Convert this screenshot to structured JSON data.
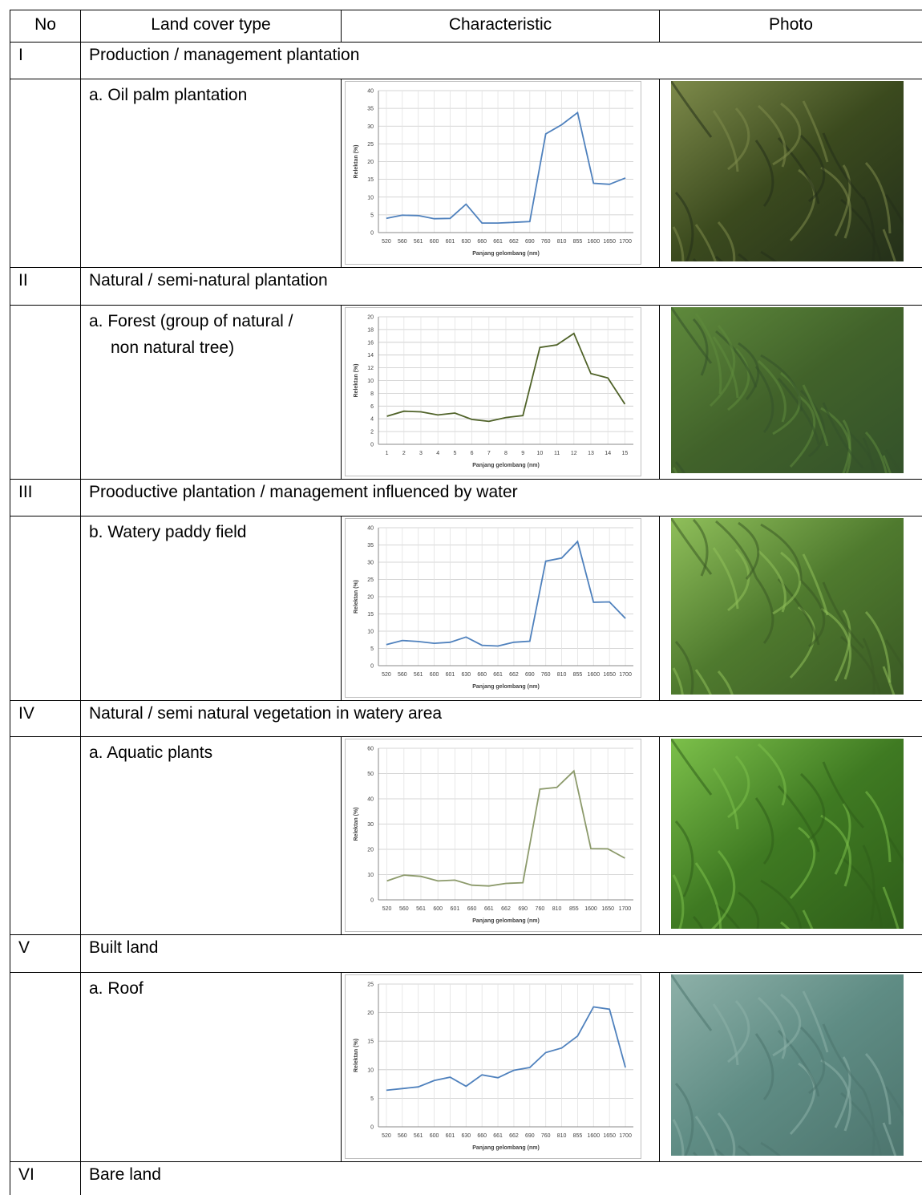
{
  "table": {
    "header": [
      "No",
      "Land cover type",
      "Characteristic",
      "Photo"
    ],
    "rows": [
      {
        "no": "I",
        "title": "Production / management plantation"
      },
      {
        "land_cover": "a. Oil palm plantation",
        "chart": {
          "type": "line",
          "ylabel": "Relektan (%)",
          "xlabel": "Panjang gelombang (nm)",
          "color": "#4f81bd",
          "categories": [
            "520",
            "560",
            "561",
            "600",
            "601",
            "630",
            "660",
            "661",
            "662",
            "690",
            "760",
            "810",
            "855",
            "1600",
            "1650",
            "1700"
          ],
          "values": [
            4,
            4.9,
            4.8,
            3.9,
            4,
            8,
            2.7,
            2.7,
            2.9,
            3.1,
            27.8,
            30.4,
            33.8,
            13.9,
            13.6,
            15.4
          ],
          "ylim": [
            0,
            40
          ],
          "yticks": [
            0,
            5,
            10,
            15,
            20,
            25,
            30,
            35,
            40
          ],
          "grid": true
        }
      },
      {
        "no": "II",
        "title": "Natural / semi-natural  plantation"
      },
      {
        "land_cover": "a. Forest (group of natural / non natural tree)",
        "chart": {
          "type": "line",
          "ylabel": "Relektan (%)",
          "xlabel": "Panjang gelombang (nm)",
          "color": "#4f6228",
          "categories": [
            "1",
            "2",
            "3",
            "4",
            "5",
            "6",
            "7",
            "8",
            "9",
            "10",
            "11",
            "12",
            "13",
            "14",
            "15"
          ],
          "values": [
            4.4,
            5.2,
            5.1,
            4.6,
            4.9,
            3.9,
            3.6,
            4.2,
            4.5,
            15.2,
            15.6,
            17.4,
            11.1,
            10.4,
            6.3
          ],
          "ylim": [
            0,
            20
          ],
          "yticks": [
            0,
            2,
            4,
            6,
            8,
            10,
            12,
            14,
            16,
            18,
            20
          ],
          "grid": true
        }
      },
      {
        "no": "III",
        "title": "Prooductive plantation / management influenced by water"
      },
      {
        "land_cover": "b. Watery paddy field",
        "chart": {
          "type": "line",
          "ylabel": "Relektan (%)",
          "xlabel": "Panjang gelombang (nm)",
          "color": "#4f81bd",
          "categories": [
            "520",
            "560",
            "561",
            "600",
            "601",
            "630",
            "660",
            "661",
            "662",
            "690",
            "760",
            "810",
            "855",
            "1600",
            "1650",
            "1700"
          ],
          "values": [
            6.1,
            7.3,
            7.0,
            6.5,
            6.8,
            8.3,
            5.9,
            5.7,
            6.8,
            7.1,
            30.3,
            31.2,
            36.0,
            18.4,
            18.5,
            13.7
          ],
          "ylim": [
            0,
            40
          ],
          "yticks": [
            0,
            5,
            10,
            15,
            20,
            25,
            30,
            35,
            40
          ],
          "grid": true
        }
      },
      {
        "no": "IV",
        "title": "Natural / semi natural vegetation in watery area"
      },
      {
        "land_cover": "a. Aquatic plants",
        "chart": {
          "type": "line",
          "ylabel": "Relektan (%)",
          "xlabel": "Panjang gelombang (nm)",
          "color": "#8c9a6b",
          "categories": [
            "520",
            "560",
            "561",
            "600",
            "601",
            "660",
            "661",
            "662",
            "690",
            "760",
            "810",
            "855",
            "1600",
            "1650",
            "1700"
          ],
          "values": [
            7.5,
            9.8,
            9.3,
            7.5,
            7.8,
            5.8,
            5.5,
            6.5,
            6.8,
            43.8,
            44.5,
            51,
            20.3,
            20.2,
            16.5
          ],
          "ylim": [
            0,
            60
          ],
          "yticks": [
            0,
            10,
            20,
            30,
            40,
            50,
            60
          ],
          "grid": true
        }
      },
      {
        "no": "V",
        "title": "Built land"
      },
      {
        "land_cover": "a. Roof",
        "chart": {
          "type": "line",
          "ylabel": "Relektan (%)",
          "xlabel": "Panjang gelombang (nm)",
          "color": "#4f81bd",
          "categories": [
            "520",
            "560",
            "561",
            "600",
            "601",
            "630",
            "660",
            "661",
            "662",
            "690",
            "760",
            "810",
            "855",
            "1600",
            "1650",
            "1700"
          ],
          "values": [
            6.4,
            6.7,
            7.0,
            8.1,
            8.7,
            7.1,
            9.1,
            8.6,
            9.9,
            10.4,
            13.0,
            13.8,
            15.9,
            21.0,
            20.6,
            10.4
          ],
          "ylim": [
            0,
            25
          ],
          "yticks": [
            0,
            5,
            10,
            15,
            20,
            25
          ],
          "grid": true
        }
      },
      {
        "no": "VI",
        "title": "Bare land"
      }
    ]
  }
}
